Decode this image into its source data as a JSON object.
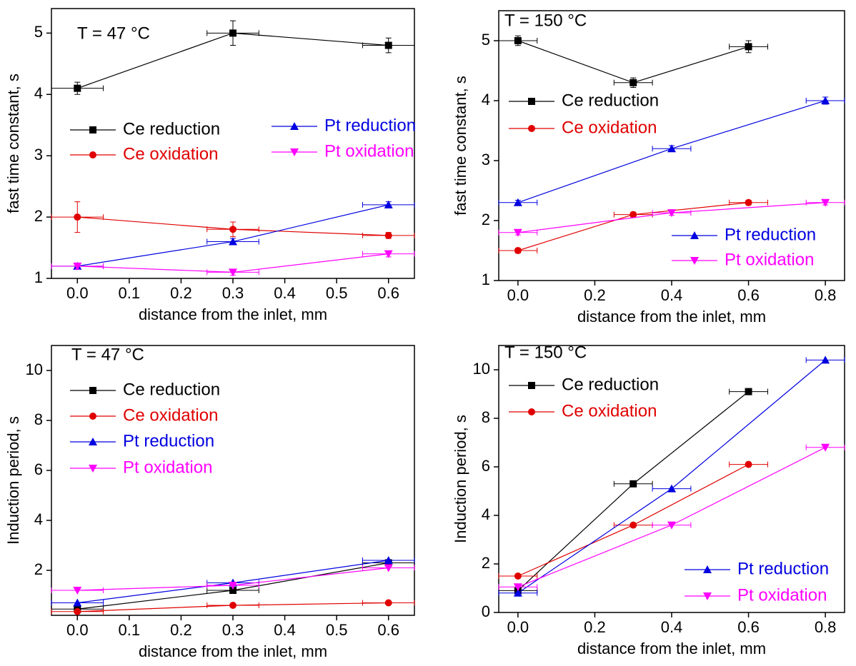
{
  "chart_data": [
    {
      "type": "line",
      "annotation": "T = 47 °C",
      "xlabel": "distance from the inlet, mm",
      "ylabel": "fast time constant, s",
      "xlim": [
        -0.05,
        0.65
      ],
      "xticks": [
        {
          "value": 0,
          "label": "0.0"
        },
        0.1,
        0.2,
        0.3,
        0.4,
        0.5,
        0.6
      ],
      "ylim": [
        1,
        5.4
      ],
      "yticks": [
        1,
        2,
        3,
        4,
        5
      ],
      "series": [
        {
          "name": "Ce reduction",
          "color": "#000000",
          "marker": "square",
          "x": [
            0,
            0.3,
            0.6
          ],
          "values": [
            4.1,
            5.0,
            4.8
          ],
          "xerr": [
            0.05,
            0.05,
            0.05
          ],
          "yerr": [
            0.1,
            0.2,
            0.12
          ]
        },
        {
          "name": "Ce oxidation",
          "color": "#e00000",
          "marker": "circle",
          "x": [
            0,
            0.3,
            0.6
          ],
          "values": [
            2.0,
            1.8,
            1.7
          ],
          "xerr": [
            0.05,
            0.05,
            0.05
          ],
          "yerr": [
            0.25,
            0.12,
            0.05
          ]
        },
        {
          "name": "Pt reduction",
          "color": "#0000e0",
          "marker": "triangle-up",
          "x": [
            0,
            0.3,
            0.6
          ],
          "values": [
            1.2,
            1.6,
            2.2
          ],
          "xerr": [
            0.05,
            0.05,
            0.05
          ],
          "yerr": [
            0.05,
            0.05,
            0.05
          ]
        },
        {
          "name": "Pt oxidation",
          "color": "#ff00ff",
          "marker": "triangle-down",
          "x": [
            0,
            0.3,
            0.6
          ],
          "values": [
            1.2,
            1.1,
            1.4
          ],
          "xerr": [
            0.05,
            0.05,
            0.05
          ],
          "yerr": [
            0.05,
            0.05,
            0.05
          ]
        }
      ]
    },
    {
      "type": "line",
      "annotation": "T = 150 °C",
      "xlabel": "distance from the inlet, mm",
      "ylabel": "fast time constant, s",
      "xlim": [
        -0.05,
        0.85
      ],
      "xticks": [
        {
          "value": 0,
          "label": "0.0"
        },
        0.2,
        0.4,
        0.6,
        0.8
      ],
      "ylim": [
        1,
        5.5
      ],
      "yticks": [
        1,
        2,
        3,
        4,
        5
      ],
      "series": [
        {
          "name": "Ce reduction",
          "color": "#000000",
          "marker": "square",
          "x": [
            0,
            0.3,
            0.6
          ],
          "values": [
            5.0,
            4.3,
            4.9
          ],
          "xerr": [
            0.05,
            0.05,
            0.05
          ],
          "yerr": [
            0.08,
            0.08,
            0.1
          ]
        },
        {
          "name": "Ce oxidation",
          "color": "#e00000",
          "marker": "circle",
          "x": [
            0,
            0.3,
            0.6
          ],
          "values": [
            1.5,
            2.1,
            2.3
          ],
          "xerr": [
            0.05,
            0.05,
            0.05
          ],
          "yerr": [
            0.04,
            0.04,
            0.04
          ]
        },
        {
          "name": "Pt reduction",
          "color": "#0000e0",
          "marker": "triangle-up",
          "x": [
            0,
            0.4,
            0.8
          ],
          "values": [
            2.3,
            3.2,
            4.0
          ],
          "xerr": [
            0.05,
            0.05,
            0.05
          ],
          "yerr": [
            0.04,
            0.05,
            0.06
          ]
        },
        {
          "name": "Pt oxidation",
          "color": "#ff00ff",
          "marker": "triangle-down",
          "x": [
            0,
            0.4,
            0.8
          ],
          "values": [
            1.8,
            2.13,
            2.3
          ],
          "xerr": [
            0.05,
            0.05,
            0.05
          ],
          "yerr": [
            0.04,
            0.04,
            0.04
          ]
        }
      ]
    },
    {
      "type": "line",
      "annotation": "T = 47 °C",
      "xlabel": "distance from the inlet, mm",
      "ylabel": "Induction period, s",
      "xlim": [
        -0.05,
        0.65
      ],
      "xticks": [
        {
          "value": 0,
          "label": "0.0"
        },
        0.1,
        0.2,
        0.3,
        0.4,
        0.5,
        0.6
      ],
      "ylim": [
        0.2,
        11
      ],
      "yticks": [
        2,
        4,
        6,
        8,
        10
      ],
      "series": [
        {
          "name": "Ce reduction",
          "color": "#000000",
          "marker": "square",
          "x": [
            0,
            0.3,
            0.6
          ],
          "values": [
            0.45,
            1.2,
            2.3
          ],
          "xerr": [
            0.05,
            0.05,
            0.05
          ]
        },
        {
          "name": "Ce oxidation",
          "color": "#e00000",
          "marker": "circle",
          "x": [
            0,
            0.3,
            0.6
          ],
          "values": [
            0.35,
            0.6,
            0.7
          ],
          "xerr": [
            0.05,
            0.05,
            0.05
          ]
        },
        {
          "name": "Pt reduction",
          "color": "#0000e0",
          "marker": "triangle-up",
          "x": [
            0,
            0.3,
            0.6
          ],
          "values": [
            0.7,
            1.5,
            2.4
          ],
          "xerr": [
            0.05,
            0.05,
            0.05
          ]
        },
        {
          "name": "Pt oxidation",
          "color": "#ff00ff",
          "marker": "triangle-down",
          "x": [
            0,
            0.3,
            0.6
          ],
          "values": [
            1.2,
            1.4,
            2.1
          ],
          "xerr": [
            0.05,
            0.05,
            0.05
          ]
        }
      ]
    },
    {
      "type": "line",
      "annotation": "T = 150 °C",
      "xlabel": "distance from the inlet, mm",
      "ylabel": "Induction period, s",
      "xlim": [
        -0.05,
        0.85
      ],
      "xticks": [
        {
          "value": 0,
          "label": "0.0"
        },
        0.2,
        0.4,
        0.6,
        0.8
      ],
      "ylim": [
        0,
        11
      ],
      "yticks": [
        0,
        2,
        4,
        6,
        8,
        10
      ],
      "series": [
        {
          "name": "Ce reduction",
          "color": "#000000",
          "marker": "square",
          "x": [
            0,
            0.3,
            0.6
          ],
          "values": [
            0.9,
            5.3,
            9.1
          ],
          "xerr": [
            0.05,
            0.05,
            0.05
          ]
        },
        {
          "name": "Ce oxidation",
          "color": "#e00000",
          "marker": "circle",
          "x": [
            0,
            0.3,
            0.6
          ],
          "values": [
            1.5,
            3.6,
            6.1
          ],
          "xerr": [
            0.05,
            0.05,
            0.05
          ]
        },
        {
          "name": "Pt reduction",
          "color": "#0000e0",
          "marker": "triangle-up",
          "x": [
            0,
            0.4,
            0.8
          ],
          "values": [
            0.8,
            5.1,
            10.4
          ],
          "xerr": [
            0.05,
            0.05,
            0.05
          ]
        },
        {
          "name": "Pt oxidation",
          "color": "#ff00ff",
          "marker": "triangle-down",
          "x": [
            0,
            0.4,
            0.8
          ],
          "values": [
            1.05,
            3.6,
            6.8
          ],
          "xerr": [
            0.05,
            0.05,
            0.05
          ]
        }
      ]
    }
  ]
}
